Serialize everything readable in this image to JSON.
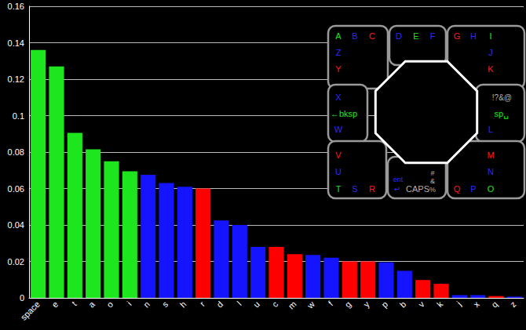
{
  "chart_data": {
    "type": "bar",
    "categories": [
      "space",
      "e",
      "t",
      "a",
      "o",
      "i",
      "n",
      "s",
      "h",
      "r",
      "d",
      "l",
      "u",
      "c",
      "m",
      "w",
      "f",
      "g",
      "y",
      "p",
      "b",
      "v",
      "k",
      "j",
      "x",
      "q",
      "z"
    ],
    "values": [
      0.136,
      0.127,
      0.0905,
      0.0815,
      0.075,
      0.0695,
      0.0675,
      0.063,
      0.061,
      0.06,
      0.0425,
      0.04,
      0.028,
      0.028,
      0.024,
      0.0235,
      0.022,
      0.02,
      0.02,
      0.0195,
      0.0148,
      0.0098,
      0.0077,
      0.0015,
      0.0015,
      0.001,
      0.0007
    ],
    "colors": [
      "#1ee61e",
      "#1ee61e",
      "#1ee61e",
      "#1ee61e",
      "#1ee61e",
      "#1ee61e",
      "#1414ff",
      "#1414ff",
      "#1414ff",
      "#ff0000",
      "#1414ff",
      "#1414ff",
      "#1414ff",
      "#ff0000",
      "#ff0000",
      "#1414ff",
      "#1414ff",
      "#ff0000",
      "#ff0000",
      "#1414ff",
      "#1414ff",
      "#ff0000",
      "#ff0000",
      "#1414ff",
      "#1414ff",
      "#ff0000",
      "#1414ff"
    ],
    "ylim": [
      0,
      0.16
    ],
    "yticks": [
      0,
      0.02,
      0.04,
      0.06,
      0.08,
      0.1,
      0.12,
      0.14,
      0.16
    ],
    "grid": true
  },
  "diagram": {
    "panels": [
      {
        "items": [
          {
            "text": "A",
            "color": "green"
          },
          {
            "text": "B",
            "color": "blue"
          },
          {
            "text": "C",
            "color": "red"
          },
          {
            "text": "Z",
            "color": "blue"
          },
          {
            "text": "Y",
            "color": "red"
          }
        ]
      },
      {
        "items": [
          {
            "text": "D",
            "color": "blue"
          },
          {
            "text": "E",
            "color": "green"
          },
          {
            "text": "F",
            "color": "blue"
          }
        ]
      },
      {
        "items": [
          {
            "text": "G",
            "color": "red"
          },
          {
            "text": "H",
            "color": "blue"
          },
          {
            "text": "I",
            "color": "green"
          },
          {
            "text": "J",
            "color": "blue"
          },
          {
            "text": "K",
            "color": "red"
          }
        ]
      },
      {
        "items": [
          {
            "text": "X",
            "color": "blue"
          },
          {
            "text": "←bksp",
            "color": "green"
          },
          {
            "text": "W",
            "color": "blue"
          }
        ]
      },
      {
        "items": [
          {
            "text": "!?&@",
            "color": "gray"
          },
          {
            "text": "sp␣",
            "color": "green"
          },
          {
            "text": "L",
            "color": "blue"
          }
        ]
      },
      {
        "items": [
          {
            "text": "V",
            "color": "red"
          },
          {
            "text": "U",
            "color": "blue"
          },
          {
            "text": "T",
            "color": "green"
          },
          {
            "text": "S",
            "color": "blue"
          },
          {
            "text": "R",
            "color": "red"
          }
        ]
      },
      {
        "items": [
          {
            "text": "ent",
            "color": "blue"
          },
          {
            "text": "↵",
            "color": "blue"
          },
          {
            "text": "CAPS",
            "color": "gray"
          },
          {
            "text": "#",
            "color": "gray"
          },
          {
            "text": "&",
            "color": "gray"
          },
          {
            "text": "%",
            "color": "gray"
          }
        ]
      },
      {
        "items": [
          {
            "text": "M",
            "color": "red"
          },
          {
            "text": "N",
            "color": "blue"
          },
          {
            "text": "Q",
            "color": "red"
          },
          {
            "text": "P",
            "color": "blue"
          },
          {
            "text": "O",
            "color": "green"
          }
        ]
      }
    ]
  }
}
